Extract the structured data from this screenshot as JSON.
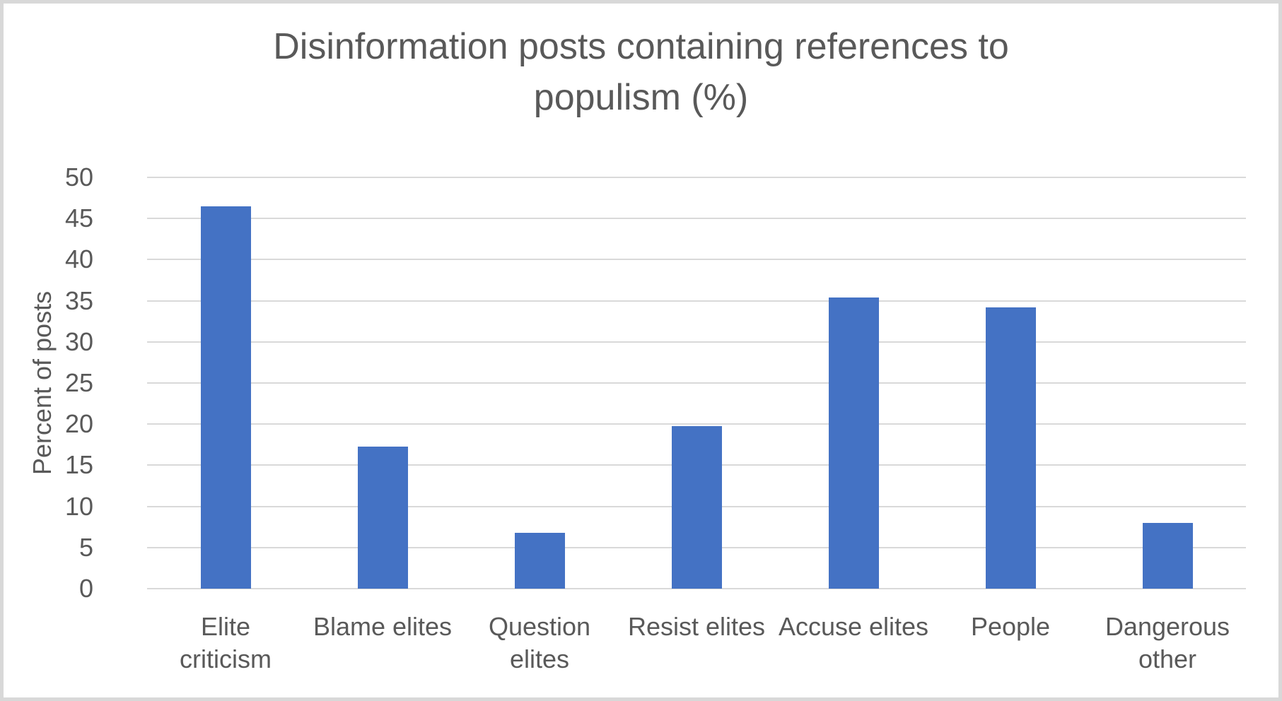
{
  "chart_data": {
    "type": "bar",
    "title": "Disinformation posts containing references to populism (%)",
    "title_lines": [
      "Disinformation posts containing references to",
      "populism (%)"
    ],
    "ylabel": "Percent of posts",
    "xlabel": "",
    "categories": [
      "Elite criticism",
      "Blame elites",
      "Question elites",
      "Resist elites",
      "Accuse elites",
      "People",
      "Dangerous other"
    ],
    "categories_wrapped": [
      "Elite\ncriticism",
      "Blame elites",
      "Question\nelites",
      "Resist elites",
      "Accuse elites",
      "People",
      "Dangerous\nother"
    ],
    "values": [
      46.5,
      17.3,
      6.8,
      19.8,
      35.4,
      34.2,
      8.0
    ],
    "ylim": [
      0,
      50
    ],
    "yticks": [
      0,
      5,
      10,
      15,
      20,
      25,
      30,
      35,
      40,
      45,
      50
    ],
    "grid": "horizontal",
    "legend": "none"
  },
  "colors": {
    "bar": "#4472c4",
    "gridline": "#d9d9d9",
    "text": "#595959",
    "frame_border": "#d8d8d8",
    "background": "#ffffff"
  }
}
